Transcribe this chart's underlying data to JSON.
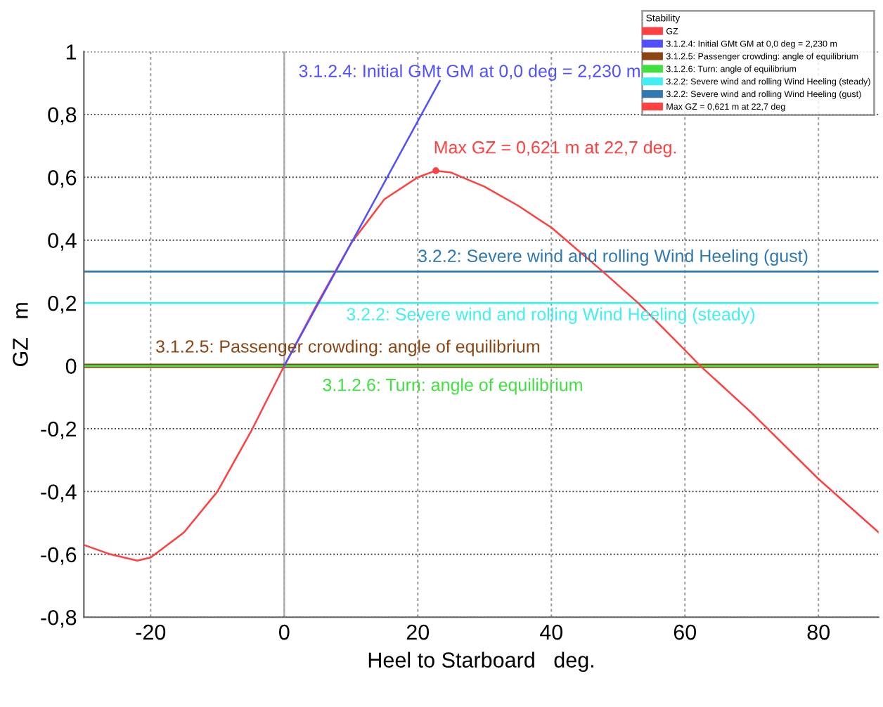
{
  "chart_data": {
    "type": "line",
    "xlabel": "Heel to Starboard   deg.",
    "ylabel": "GZ   m",
    "legend_title": "Stability",
    "series": [
      {
        "name": "GZ",
        "color": "#ff4040",
        "x": [
          -30,
          -26,
          -22,
          -20,
          -15,
          -10,
          -5,
          0,
          5,
          10,
          15,
          20,
          22.7,
          25,
          30,
          35,
          40,
          47.7,
          53,
          60,
          62.3,
          70,
          80,
          89
        ],
        "values": [
          -0.57,
          -0.6,
          -0.62,
          -0.61,
          -0.53,
          -0.4,
          -0.21,
          0,
          0.2,
          0.39,
          0.53,
          0.6,
          0.621,
          0.615,
          0.57,
          0.51,
          0.44,
          0.3,
          0.2,
          0.05,
          0,
          -0.15,
          -0.36,
          -0.53
        ]
      },
      {
        "name": "3.1.2.4: Initial GMt GM at 0,0 deg = 2,230 m",
        "color": "#5050ff",
        "x": [
          0,
          23.3
        ],
        "values": [
          0,
          0.907
        ]
      },
      {
        "name": "Max GZ = 0,621 m at 22,7 deg",
        "type": "scatter",
        "color": "#ff4040",
        "x": [
          22.7
        ],
        "values": [
          0.621
        ]
      }
    ],
    "ref_lines": [
      {
        "axis": "y",
        "value": 0,
        "label": "3.1.2.5: Passenger crowding: angle of equilibrium",
        "color": "#8b4513"
      },
      {
        "axis": "y",
        "value": 0,
        "label": "3.1.2.6: Turn: angle of equilibrium",
        "color": "#40e040"
      },
      {
        "axis": "y",
        "value": 0.2,
        "label": "3.2.2: Severe wind and rolling Wind Heeling (steady)",
        "color": "#40f0f0"
      },
      {
        "axis": "y",
        "value": 0.3,
        "label": "3.2.2: Severe wind and rolling Wind Heeling (gust)",
        "color": "#2f78b0"
      }
    ],
    "annotations": [
      "3.1.2.4: Initial GMt GM at 0,0 deg = 2,230 m",
      "Max GZ = 0,621 m at 22,7 deg.",
      "3.2.2: Severe wind and rolling Wind Heeling (gust)",
      "3.2.2: Severe wind and rolling Wind Heeling (steady)",
      "3.1.2.5: Passenger crowding: angle of equilibrium",
      "3.1.2.6: Turn: angle of equilibrium"
    ],
    "xlim": [
      -30,
      89
    ],
    "xticks": [
      -20,
      0,
      20,
      40,
      60,
      80
    ],
    "ylim": [
      -0.8,
      1
    ],
    "yticks": [
      {
        "value": -0.8,
        "label": "-0,8"
      },
      {
        "value": -0.6,
        "label": "-0,6"
      },
      {
        "value": -0.4,
        "label": "-0,4"
      },
      {
        "value": -0.2,
        "label": "-0,2"
      },
      0,
      {
        "value": 0.2,
        "label": "0,2"
      },
      {
        "value": 0.4,
        "label": "0,4"
      },
      {
        "value": 0.6,
        "label": "0,6"
      },
      {
        "value": 0.8,
        "label": "0,8"
      },
      1
    ],
    "grid": true,
    "legend": "top right"
  }
}
